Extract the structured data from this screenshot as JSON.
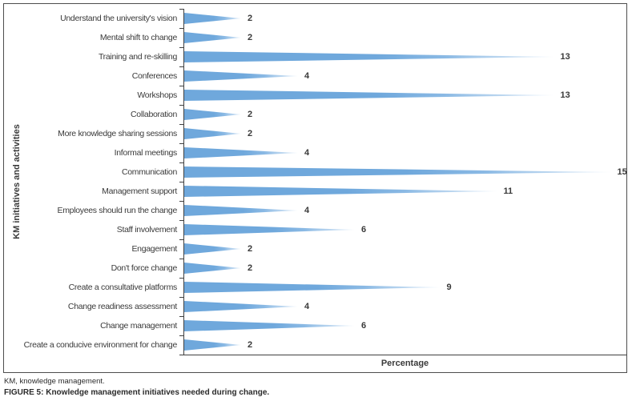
{
  "figure": {
    "footnote": "KM, knowledge management.",
    "caption": "FIGURE 5: Knowledge management initiatives needed during change."
  },
  "chart_data": {
    "type": "bar",
    "orientation": "horizontal",
    "bar_shape": "tapered-triangle",
    "title": "",
    "xlabel": "Percentage",
    "ylabel": "KM initiatives and activities",
    "xlim": [
      0,
      15.5
    ],
    "grid": false,
    "data_labels": true,
    "bar_color": "#6fa8dc",
    "bar_tip_fade_color": "#e6f0fa",
    "categories": [
      "Understand the university's vision",
      "Mental shift to change",
      "Training and re-skilling",
      "Conferences",
      "Workshops",
      "Collaboration",
      "More knowledge sharing sessions",
      "Informal meetings",
      "Communication",
      "Management support",
      "Employees should run the change",
      "Staff involvement",
      "Engagement",
      "Don't force change",
      "Create a consultative platforms",
      "Change readiness assessment",
      "Change management",
      "Create a conducive environment for change"
    ],
    "values": [
      2,
      2,
      13,
      4,
      13,
      2,
      2,
      4,
      15,
      11,
      4,
      6,
      2,
      2,
      9,
      4,
      6,
      2
    ]
  }
}
